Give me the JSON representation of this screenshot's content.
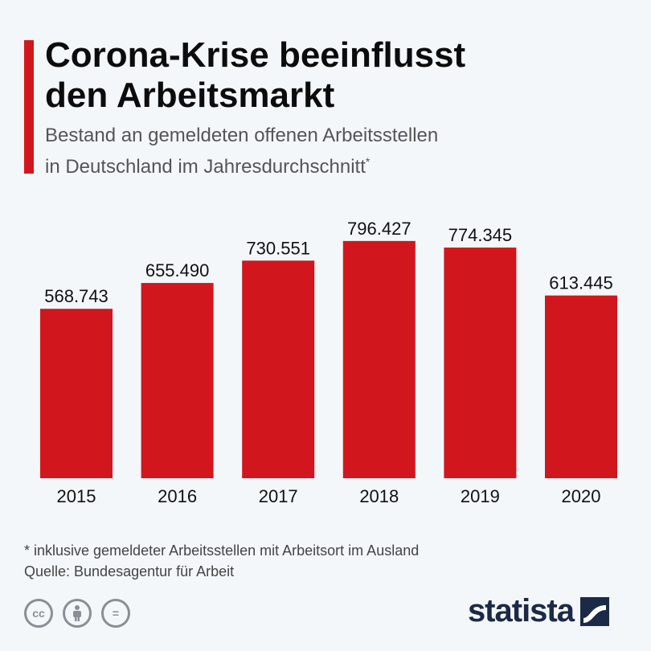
{
  "header": {
    "title_line1": "Corona-Krise beeinflusst",
    "title_line2": "den Arbeitsmarkt",
    "subtitle_line1": "Bestand an gemeldeten offenen Arbeitsstellen",
    "subtitle_line2": "in Deutschland im Jahresdurchschnitt",
    "subtitle_marker": "*"
  },
  "chart_data": {
    "type": "bar",
    "categories": [
      "2015",
      "2016",
      "2017",
      "2018",
      "2019",
      "2020"
    ],
    "values": [
      568743,
      655490,
      730551,
      796427,
      774345,
      613445
    ],
    "value_labels": [
      "568.743",
      "655.490",
      "730.551",
      "796.427",
      "774.345",
      "613.445"
    ],
    "title": "Corona-Krise beeinflusst den Arbeitsmarkt",
    "subtitle": "Bestand an gemeldeten offenen Arbeitsstellen in Deutschland im Jahresdurchschnitt*",
    "xlabel": "",
    "ylabel": "",
    "ylim": [
      0,
      850000
    ],
    "grid": false,
    "bar_color": "#d2161e"
  },
  "footer": {
    "footnote": "* inklusive gemeldeter Arbeitsstellen mit Arbeitsort im Ausland",
    "source": "Quelle: Bundesagentur für Arbeit",
    "cc_icons": [
      "cc-icon",
      "attribution-icon",
      "no-derivatives-icon"
    ],
    "cc_glyphs": [
      "cc",
      "",
      "="
    ],
    "brand": "statista"
  },
  "colors": {
    "accent": "#d2161e",
    "background": "#f3f7fa",
    "brand": "#1a2a47"
  }
}
